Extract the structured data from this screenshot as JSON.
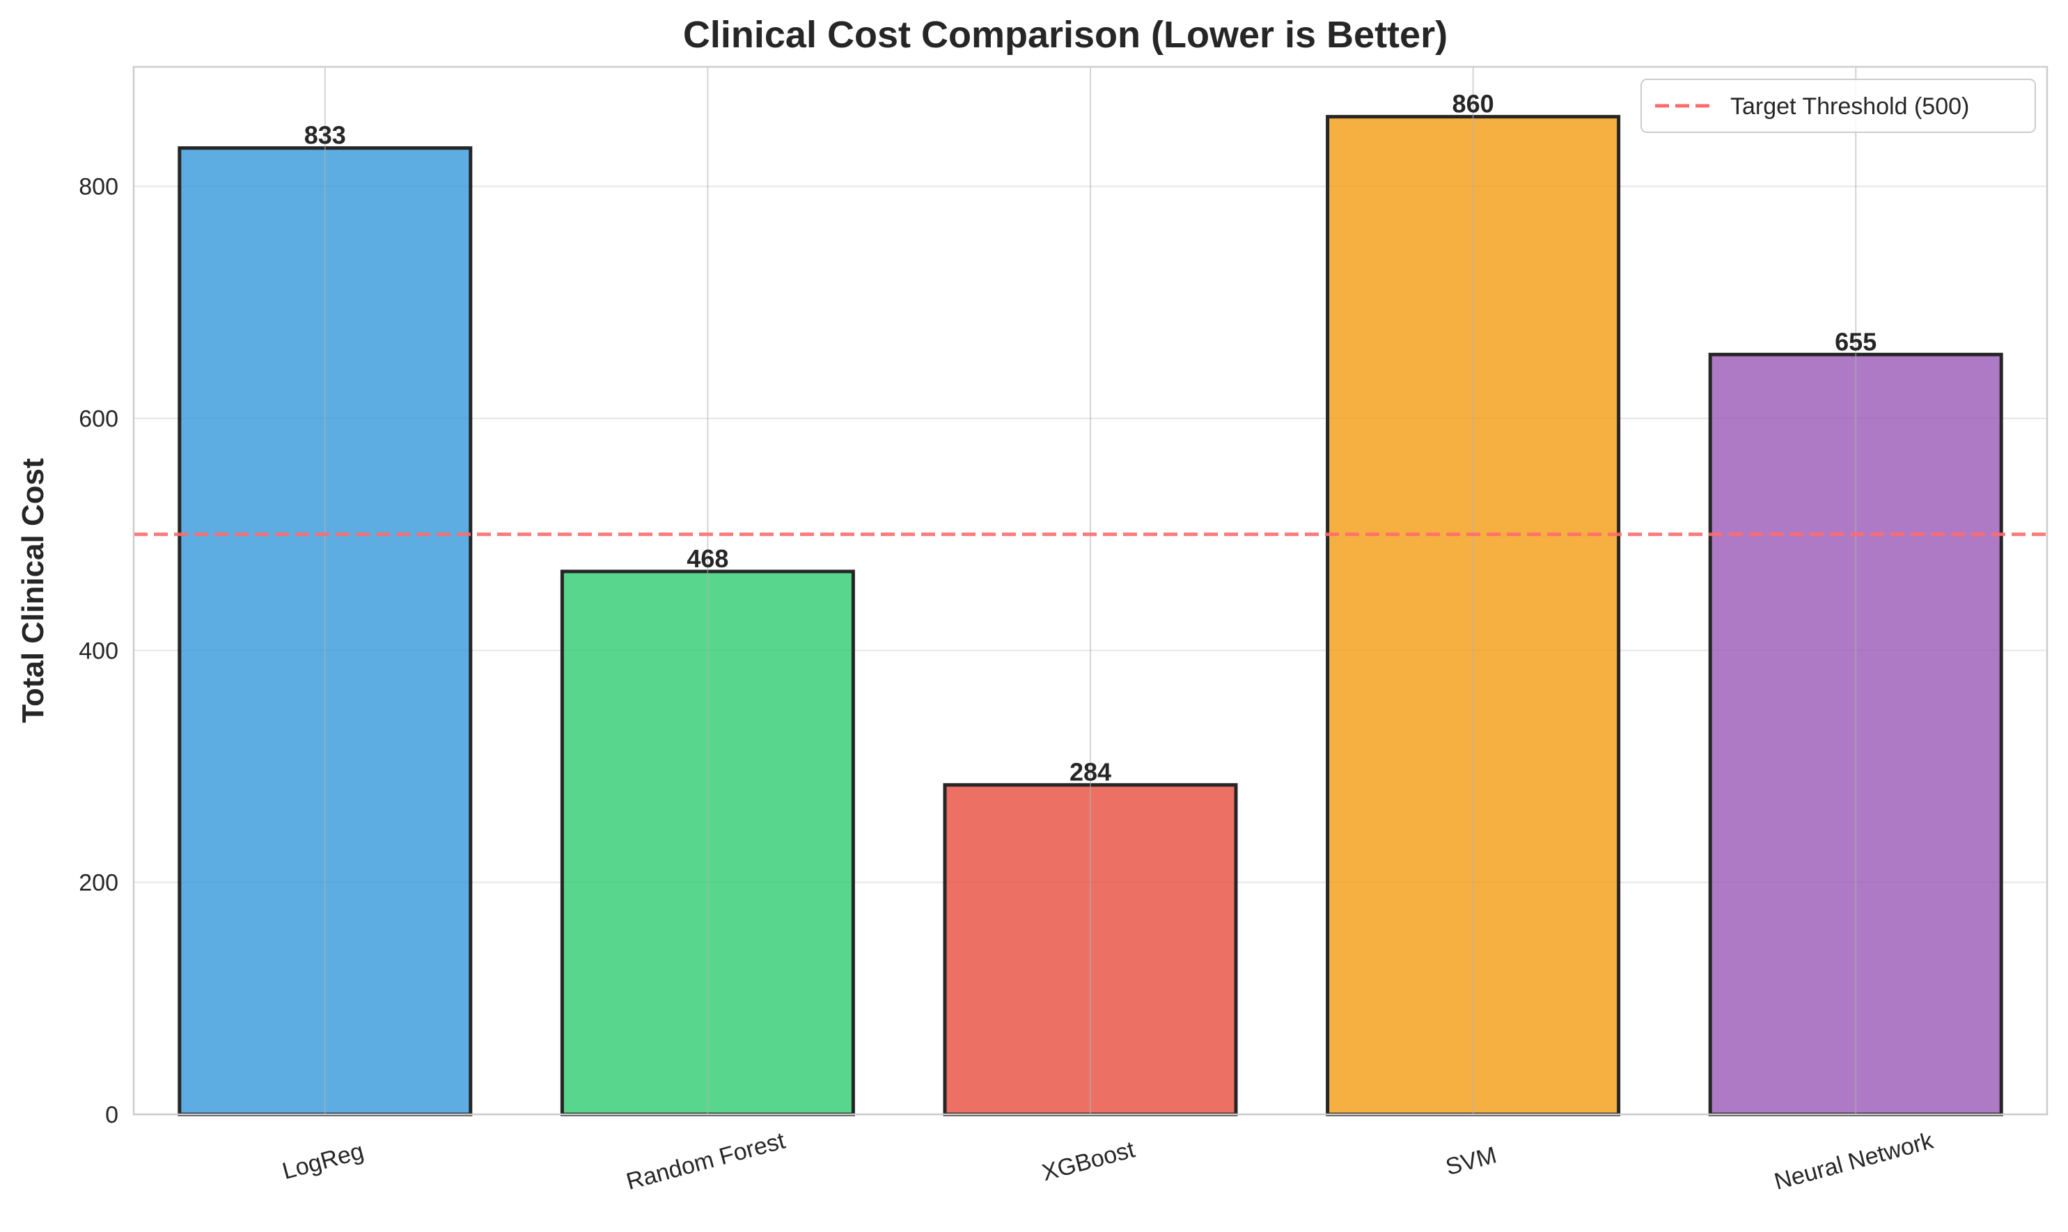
{
  "chart_data": {
    "type": "bar",
    "title": "Clinical Cost Comparison (Lower is Better)",
    "xlabel": "",
    "ylabel": "Total Clinical Cost",
    "categories": [
      "LogReg",
      "Random Forest",
      "XGBoost",
      "SVM",
      "Neural Network"
    ],
    "values": [
      833,
      468,
      284,
      860,
      655
    ],
    "value_labels": [
      "833",
      "468",
      "284",
      "860",
      "655"
    ],
    "bar_colors": [
      "#3498db",
      "#2ecc71",
      "#e74c3c",
      "#f39c12",
      "#9b59b6"
    ],
    "bar_edge_color": "#262626",
    "ylim": [
      0,
      903
    ],
    "yticks": [
      0,
      200,
      400,
      600,
      800
    ],
    "threshold": {
      "value": 500,
      "label": "Target Threshold (500)",
      "color": "#ff6b6b"
    },
    "grid": true,
    "legend_position": "top-right"
  }
}
